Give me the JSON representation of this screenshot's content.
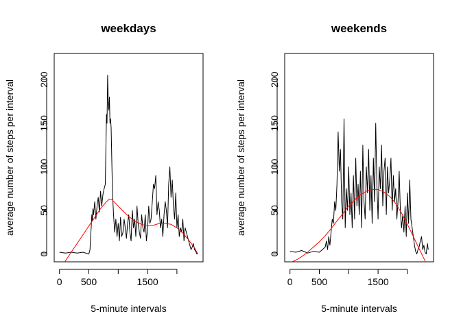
{
  "chart_data": [
    {
      "type": "line",
      "title": "weekdays",
      "xlabel": "5-minute intervals",
      "ylabel": "average number of steps per interval",
      "xlim": [
        -90,
        2445
      ],
      "ylim": [
        -9,
        230
      ],
      "x_ticks": [
        0,
        500,
        1000,
        1500,
        2000
      ],
      "x_tick_labels": [
        "0",
        "500",
        "",
        "1500",
        ""
      ],
      "y_ticks": [
        0,
        50,
        100,
        150,
        200
      ],
      "y_tick_labels": [
        "0",
        "50",
        "100",
        "150",
        "200"
      ],
      "grid": false,
      "legend": "none",
      "series": [
        {
          "role": "data",
          "color": "#000000",
          "x": [
            0,
            100,
            200,
            300,
            400,
            500,
            520,
            530,
            540,
            550,
            560,
            570,
            580,
            600,
            620,
            640,
            660,
            680,
            700,
            720,
            740,
            760,
            780,
            800,
            810,
            820,
            830,
            840,
            850,
            860,
            870,
            880,
            890,
            900,
            910,
            920,
            940,
            960,
            980,
            1000,
            1020,
            1040,
            1060,
            1080,
            1100,
            1120,
            1140,
            1160,
            1180,
            1200,
            1220,
            1240,
            1260,
            1280,
            1300,
            1320,
            1340,
            1360,
            1380,
            1400,
            1420,
            1440,
            1460,
            1480,
            1500,
            1520,
            1540,
            1560,
            1580,
            1600,
            1620,
            1640,
            1660,
            1680,
            1700,
            1720,
            1740,
            1760,
            1780,
            1800,
            1820,
            1840,
            1860,
            1880,
            1900,
            1920,
            1940,
            1960,
            1980,
            2000,
            2020,
            2040,
            2060,
            2080,
            2100,
            2120,
            2140,
            2160,
            2180,
            2200,
            2220,
            2240,
            2260,
            2280,
            2300,
            2320,
            2340,
            2355
          ],
          "values": [
            2,
            1,
            2,
            1,
            2,
            0,
            5,
            20,
            30,
            45,
            38,
            52,
            45,
            60,
            40,
            55,
            65,
            48,
            72,
            55,
            68,
            75,
            80,
            160,
            150,
            205,
            175,
            165,
            180,
            150,
            155,
            145,
            110,
            80,
            60,
            45,
            25,
            40,
            20,
            35,
            15,
            42,
            20,
            25,
            40,
            30,
            18,
            35,
            45,
            25,
            15,
            50,
            30,
            40,
            20,
            55,
            35,
            25,
            18,
            45,
            30,
            25,
            45,
            15,
            28,
            55,
            35,
            40,
            60,
            80,
            75,
            90,
            45,
            60,
            50,
            30,
            40,
            20,
            45,
            60,
            50,
            30,
            80,
            100,
            65,
            85,
            55,
            40,
            70,
            30,
            45,
            20,
            30,
            25,
            40,
            15,
            30,
            25,
            20,
            15,
            10,
            5,
            8,
            12,
            5,
            3,
            0,
            1
          ]
        },
        {
          "role": "smooth",
          "color": "#ff0000",
          "x": [
            30,
            100,
            200,
            300,
            400,
            500,
            600,
            700,
            800,
            850,
            900,
            1000,
            1100,
            1200,
            1300,
            1400,
            1500,
            1600,
            1700,
            1800,
            1900,
            2000,
            2100,
            2200,
            2300,
            2355
          ],
          "values": [
            -15,
            -8,
            2,
            12,
            22,
            32,
            42,
            52,
            60,
            63,
            62,
            55,
            48,
            42,
            37,
            34,
            32,
            33,
            35,
            35,
            34,
            30,
            24,
            16,
            7,
            0
          ]
        }
      ]
    },
    {
      "type": "line",
      "title": "weekends",
      "xlabel": "5-minute intervals",
      "ylabel": "average number of steps per interval",
      "xlim": [
        -90,
        2445
      ],
      "ylim": [
        -9,
        230
      ],
      "x_ticks": [
        0,
        500,
        1000,
        1500,
        2000
      ],
      "x_tick_labels": [
        "0",
        "500",
        "",
        "1500",
        ""
      ],
      "y_ticks": [
        0,
        50,
        100,
        150,
        200
      ],
      "y_tick_labels": [
        "0",
        "50",
        "100",
        "150",
        "200"
      ],
      "grid": false,
      "legend": "none",
      "series": [
        {
          "role": "data",
          "color": "#000000",
          "x": [
            0,
            100,
            200,
            300,
            400,
            500,
            550,
            600,
            620,
            640,
            660,
            680,
            700,
            720,
            740,
            760,
            780,
            800,
            820,
            840,
            860,
            880,
            900,
            920,
            940,
            960,
            980,
            1000,
            1020,
            1040,
            1060,
            1080,
            1100,
            1120,
            1140,
            1160,
            1180,
            1200,
            1220,
            1240,
            1260,
            1280,
            1300,
            1320,
            1340,
            1360,
            1380,
            1400,
            1420,
            1440,
            1460,
            1480,
            1500,
            1520,
            1540,
            1560,
            1580,
            1600,
            1620,
            1640,
            1660,
            1680,
            1700,
            1720,
            1740,
            1760,
            1780,
            1800,
            1820,
            1840,
            1860,
            1880,
            1900,
            1920,
            1940,
            1960,
            1980,
            2000,
            2020,
            2040,
            2060,
            2080,
            2100,
            2120,
            2140,
            2160,
            2180,
            2200,
            2220,
            2240,
            2260,
            2280,
            2300,
            2320,
            2340,
            2355
          ],
          "values": [
            3,
            2,
            4,
            1,
            3,
            2,
            5,
            8,
            15,
            5,
            20,
            10,
            25,
            40,
            35,
            60,
            50,
            80,
            140,
            95,
            120,
            60,
            40,
            155,
            30,
            75,
            50,
            100,
            45,
            70,
            30,
            90,
            40,
            110,
            55,
            80,
            45,
            95,
            30,
            125,
            60,
            40,
            100,
            70,
            120,
            50,
            90,
            35,
            110,
            60,
            150,
            80,
            40,
            100,
            75,
            125,
            55,
            95,
            110,
            45,
            100,
            70,
            85,
            110,
            50,
            90,
            60,
            75,
            40,
            60,
            95,
            50,
            30,
            45,
            25,
            55,
            20,
            70,
            35,
            85,
            40,
            30,
            20,
            10,
            3,
            0,
            5,
            8,
            15,
            20,
            5,
            10,
            2,
            0,
            12,
            5
          ]
        },
        {
          "role": "smooth",
          "color": "#ff0000",
          "x": [
            0,
            100,
            200,
            300,
            400,
            500,
            600,
            700,
            800,
            900,
            1000,
            1100,
            1200,
            1300,
            1400,
            1500,
            1600,
            1700,
            1800,
            1900,
            2000,
            2100,
            2200,
            2300,
            2355
          ],
          "values": [
            -10,
            -7,
            -3,
            2,
            8,
            14,
            21,
            29,
            38,
            46,
            55,
            62,
            68,
            72,
            74,
            74,
            71,
            66,
            58,
            47,
            34,
            20,
            6,
            -8,
            -15
          ]
        }
      ]
    }
  ]
}
